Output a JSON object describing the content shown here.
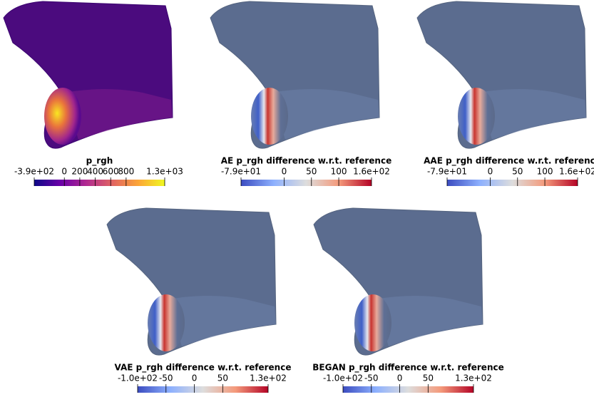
{
  "panels": [
    {
      "title": "p_rgh",
      "colorbar": {
        "colors": [
          "#0d0887",
          "#6a00a8",
          "#b12a90",
          "#e16462",
          "#fca636",
          "#f0f921"
        ],
        "ticks": [
          {
            "value": -390,
            "label": "-3.9e+02"
          },
          0,
          200,
          400,
          600,
          800,
          {
            "value": 1300,
            "label": "1.3e+03"
          }
        ]
      }
    },
    {
      "title": "AE p_rgh difference w.r.t. reference",
      "colorbar": {
        "colors": [
          "#3b4cc0",
          "#8db0fe",
          "#dddddd",
          "#f49a7b",
          "#b40426"
        ],
        "ticks": [
          {
            "value": -79,
            "label": "-7.9e+01"
          },
          0,
          50,
          100,
          {
            "value": 160,
            "label": "1.6e+02"
          }
        ]
      }
    },
    {
      "title": "AAE p_rgh difference w.r.t. reference",
      "colorbar": {
        "colors": [
          "#3b4cc0",
          "#8db0fe",
          "#dddddd",
          "#f49a7b",
          "#b40426"
        ],
        "ticks": [
          {
            "value": -79,
            "label": "-7.9e+01"
          },
          0,
          50,
          100,
          {
            "value": 160,
            "label": "1.6e+02"
          }
        ]
      }
    },
    {
      "title": "VAE p_rgh difference w.r.t. reference",
      "colorbar": {
        "colors": [
          "#3b4cc0",
          "#8db0fe",
          "#dddddd",
          "#f49a7b",
          "#b40426"
        ],
        "ticks": [
          {
            "value": -100,
            "label": "-1.0e+02"
          },
          -50,
          0,
          50,
          {
            "value": 130,
            "label": "1.3e+02"
          }
        ]
      }
    },
    {
      "title": "BEGAN p_rgh difference w.r.t. reference",
      "colorbar": {
        "colors": [
          "#3b4cc0",
          "#8db0fe",
          "#dddddd",
          "#f49a7b",
          "#b40426"
        ],
        "ticks": [
          {
            "value": -100,
            "label": "-1.0e+02"
          },
          -50,
          0,
          50,
          {
            "value": 130,
            "label": "1.3e+02"
          }
        ]
      }
    }
  ]
}
